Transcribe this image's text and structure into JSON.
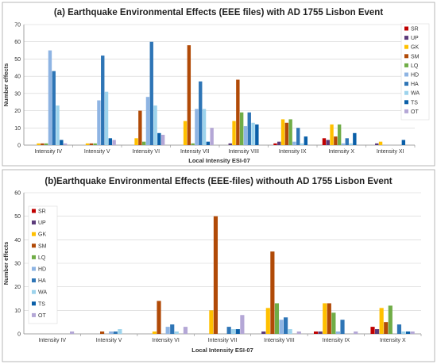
{
  "chart_data": [
    {
      "type": "bar",
      "title": "(a) Earthquake Environmental Effects (EEE files)  with AD 1755 Lisbon Event",
      "xlabel": "Local Intensity ESI-07",
      "ylabel": "Number effects",
      "ylim": [
        0,
        70
      ],
      "yticks": [
        0,
        10,
        20,
        30,
        40,
        50,
        60,
        70
      ],
      "grid": true,
      "legend": "right",
      "categories": [
        "Intensity IV",
        "Intensity V",
        "Intensity VI",
        "Intensity VII",
        "Intensity VIII",
        "Intensity IX",
        "Intensity X",
        "Intensity XI"
      ],
      "series": [
        {
          "name": "SR",
          "color": "#c00000",
          "values": [
            0,
            0,
            0,
            0,
            0,
            1,
            4,
            0
          ]
        },
        {
          "name": "UP",
          "color": "#5b3a7a",
          "values": [
            0,
            0,
            0,
            0,
            1,
            2,
            3,
            1
          ]
        },
        {
          "name": "GK",
          "color": "#ffc000",
          "values": [
            1,
            1,
            4,
            14,
            14,
            15,
            12,
            2
          ]
        },
        {
          "name": "SM",
          "color": "#b14a07",
          "values": [
            1,
            1,
            20,
            58,
            38,
            13,
            5,
            0
          ]
        },
        {
          "name": "LQ",
          "color": "#70ad47",
          "values": [
            1,
            1,
            2,
            1,
            19,
            15,
            12,
            0
          ]
        },
        {
          "name": "HD",
          "color": "#8eb4e3",
          "values": [
            55,
            26,
            28,
            21,
            11,
            2,
            1,
            0
          ]
        },
        {
          "name": "HA",
          "color": "#2e75b6",
          "values": [
            43,
            52,
            60,
            37,
            19,
            10,
            4,
            0
          ]
        },
        {
          "name": "WA",
          "color": "#9dd3ec",
          "values": [
            23,
            31,
            23,
            21,
            13,
            1,
            1,
            0
          ]
        },
        {
          "name": "TS",
          "color": "#0a5fa8",
          "values": [
            3,
            4,
            7,
            2,
            12,
            5,
            7,
            3
          ]
        },
        {
          "name": "OT",
          "color": "#b4a7d6",
          "values": [
            1,
            3,
            6,
            10,
            0,
            0,
            0,
            0
          ]
        }
      ]
    },
    {
      "type": "bar",
      "title": "(b)Earthquake Environmental Effects (EEE-files) withouth AD 1755 Lisbon Event",
      "xlabel": "Local Intensity ESI-07",
      "ylabel": "Number effects",
      "ylim": [
        0,
        60
      ],
      "yticks": [
        0,
        10,
        20,
        30,
        40,
        50,
        60
      ],
      "grid": true,
      "legend": "left",
      "categories": [
        "Intensity IV",
        "Intensity V",
        "Intensity VI",
        "Intensity VII",
        "Intensity VIII",
        "Intensity IX",
        "Intensity X"
      ],
      "series": [
        {
          "name": "SR",
          "color": "#c00000",
          "values": [
            0,
            0,
            0,
            0,
            0,
            1,
            3
          ]
        },
        {
          "name": "UP",
          "color": "#5b3a7a",
          "values": [
            0,
            0,
            0,
            0,
            1,
            1,
            2
          ]
        },
        {
          "name": "GK",
          "color": "#ffc000",
          "values": [
            0,
            0,
            1,
            10,
            11,
            13,
            11
          ]
        },
        {
          "name": "SM",
          "color": "#b14a07",
          "values": [
            0,
            1,
            14,
            50,
            35,
            13,
            5
          ]
        },
        {
          "name": "LQ",
          "color": "#70ad47",
          "values": [
            0,
            0,
            0,
            0,
            13,
            9,
            12
          ]
        },
        {
          "name": "HD",
          "color": "#8eb4e3",
          "values": [
            0,
            1,
            3,
            0,
            6,
            1,
            0
          ]
        },
        {
          "name": "HA",
          "color": "#2e75b6",
          "values": [
            0,
            1,
            4,
            3,
            7,
            6,
            4
          ]
        },
        {
          "name": "WA",
          "color": "#9dd3ec",
          "values": [
            0,
            2,
            1,
            2,
            2,
            0,
            1
          ]
        },
        {
          "name": "TS",
          "color": "#0a5fa8",
          "values": [
            0,
            0,
            0,
            2,
            0,
            0,
            1
          ]
        },
        {
          "name": "OT",
          "color": "#b4a7d6",
          "values": [
            1,
            0,
            3,
            8,
            1,
            1,
            1
          ]
        }
      ]
    }
  ]
}
